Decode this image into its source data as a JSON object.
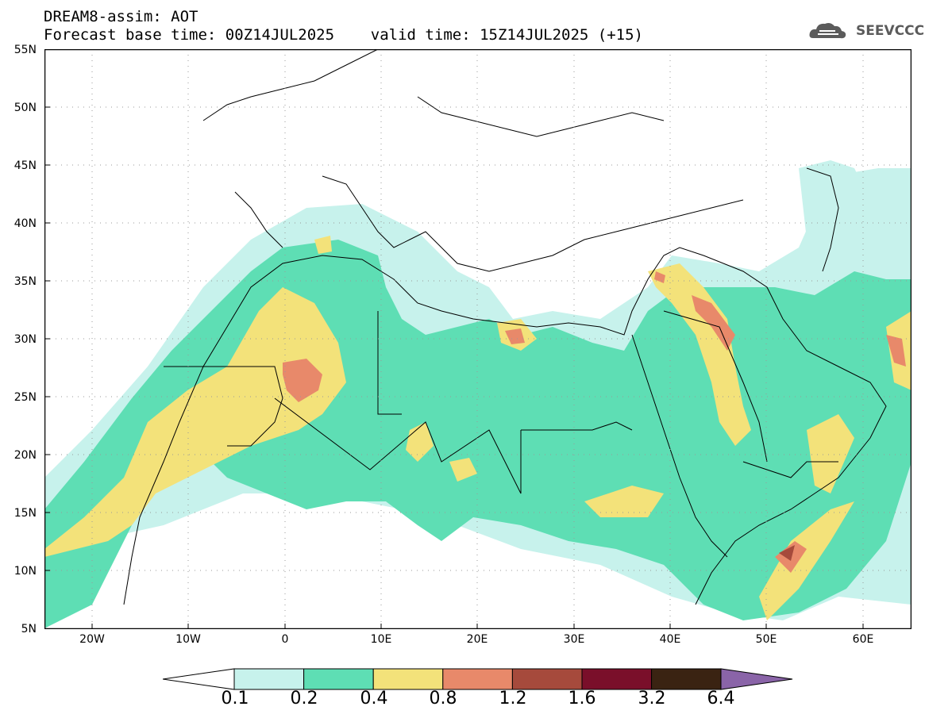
{
  "header": {
    "line1": "DREAM8-assim: AOT",
    "line2": "Forecast base time: 00Z14JUL2025    valid time: 15Z14JUL2025 (+15)"
  },
  "logo": {
    "text": "SEEVCCC",
    "icon": "cloud-logo-icon"
  },
  "map": {
    "lon_range": [
      -25,
      65
    ],
    "lat_range": [
      5,
      55
    ],
    "grid": "dotted",
    "variable": "AOT"
  },
  "axes": {
    "lat_ticks": [
      "55N",
      "50N",
      "45N",
      "40N",
      "35N",
      "30N",
      "25N",
      "20N",
      "15N",
      "10N",
      "5N"
    ],
    "lon_ticks": [
      "20W",
      "10W",
      "0",
      "10E",
      "20E",
      "30E",
      "40E",
      "50E",
      "60E"
    ]
  },
  "colorbar": {
    "levels": [
      "0.1",
      "0.2",
      "0.4",
      "0.8",
      "1.2",
      "1.6",
      "3.2",
      "6.4"
    ],
    "colors": [
      "#c7f2ec",
      "#5edeb4",
      "#f3e27a",
      "#e8896a",
      "#a64a3c",
      "#7a0f2a",
      "#3a2312",
      "#8a64a8"
    ]
  }
}
